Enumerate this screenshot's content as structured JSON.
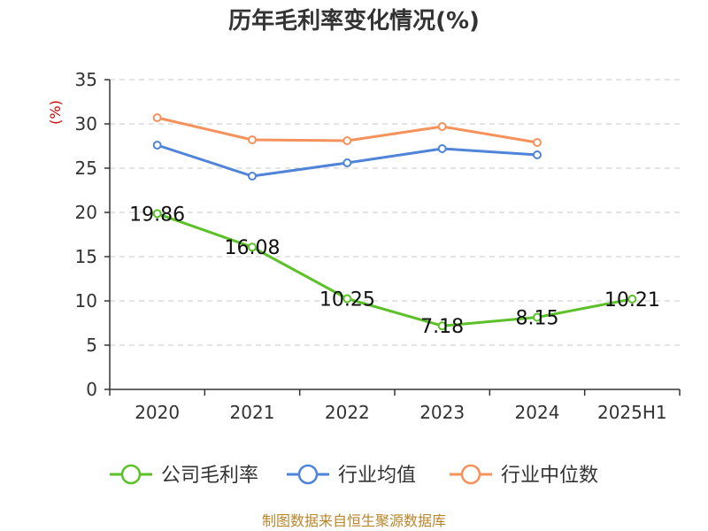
{
  "chart_data": {
    "type": "line",
    "title": "历年毛利率变化情况(%)",
    "unit_label": "(%)",
    "categories": [
      "2020",
      "2021",
      "2022",
      "2023",
      "2024",
      "2025H1"
    ],
    "ylim": [
      0,
      35
    ],
    "yticks": [
      0,
      5,
      10,
      15,
      20,
      25,
      30,
      35
    ],
    "grid": true,
    "legend_position": "bottom",
    "series": [
      {
        "name": "公司毛利率",
        "color": "#5cc129",
        "values": [
          19.86,
          16.08,
          10.25,
          7.18,
          8.15,
          10.21
        ],
        "labels": [
          "19.86",
          "16.08",
          "10.25",
          "7.18",
          "8.15",
          "10.21"
        ]
      },
      {
        "name": "行业均值",
        "color": "#4f84d8",
        "values": [
          27.6,
          24.1,
          25.6,
          27.2,
          26.5,
          null
        ]
      },
      {
        "name": "行业中位数",
        "color": "#f5915a",
        "values": [
          30.7,
          28.2,
          28.1,
          29.7,
          27.9,
          null
        ]
      }
    ]
  },
  "footer": {
    "source": "制图数据来自恒生聚源数据库"
  }
}
